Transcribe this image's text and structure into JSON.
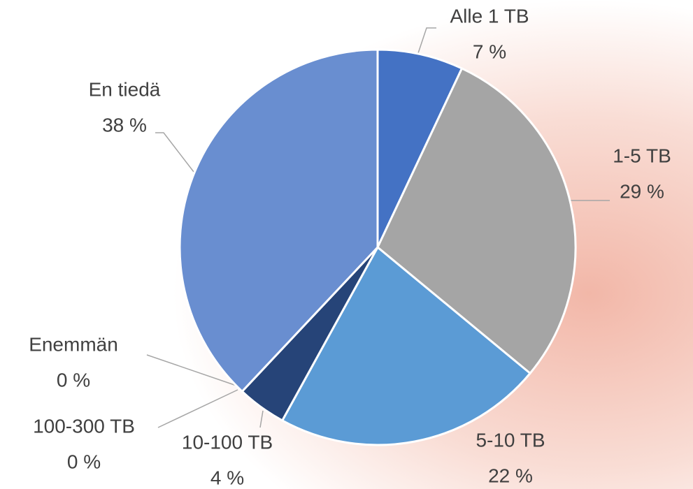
{
  "chart_data": {
    "type": "pie",
    "categories": [
      "Alle 1 TB",
      "1-5 TB",
      "5-10 TB",
      "10-100 TB",
      "100-300 TB",
      "Enemmän",
      "En tiedä"
    ],
    "values": [
      7,
      29,
      22,
      4,
      0,
      0,
      38
    ],
    "value_labels": [
      "7 %",
      "29 %",
      "22 %",
      "4 %",
      "0 %",
      "0 %",
      "38 %"
    ],
    "colors": [
      "#4472c4",
      "#a5a5a5",
      "#5b9bd5",
      "#264478",
      "#7f7f7f",
      "#9e480e",
      "#698ed0"
    ]
  }
}
